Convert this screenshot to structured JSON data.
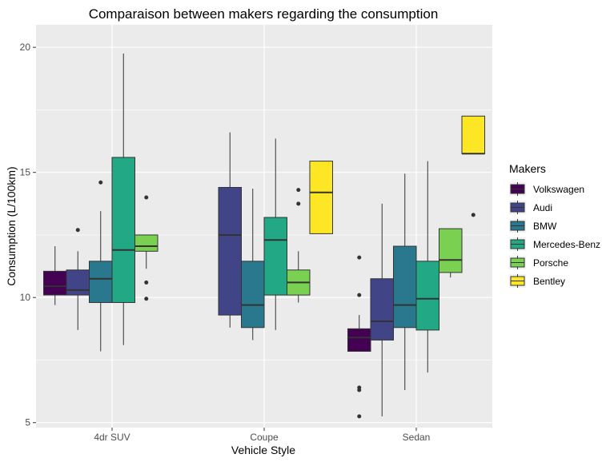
{
  "chart_data": {
    "type": "boxplot",
    "title": "Comparaison between makers regarding the consumption",
    "xlabel": "Vehicle Style",
    "ylabel": "Consumption (L/100km)",
    "ylim": [
      4.8,
      20.9
    ],
    "yticks": [
      5,
      10,
      15,
      20
    ],
    "grid": true,
    "legend_title": "Makers",
    "legend_position": "right",
    "categories": [
      "4dr SUV",
      "Coupe",
      "Sedan"
    ],
    "series": [
      {
        "name": "Volkswagen",
        "color": "#440154",
        "boxes": [
          {
            "category": "4dr SUV",
            "min": 9.7,
            "q1": 10.1,
            "median": 10.45,
            "q3": 11.05,
            "max": 12.05,
            "outliers": []
          },
          null,
          {
            "category": "Sedan",
            "min": 7.85,
            "q1": 7.85,
            "median": 8.4,
            "q3": 8.75,
            "max": 9.3,
            "outliers": [
              11.6,
              10.1,
              6.4,
              6.3,
              5.25
            ]
          }
        ]
      },
      {
        "name": "Audi",
        "color": "#414487",
        "boxes": [
          {
            "category": "4dr SUV",
            "min": 8.7,
            "q1": 10.1,
            "median": 10.3,
            "q3": 11.1,
            "max": 11.85,
            "outliers": [
              12.7
            ]
          },
          {
            "category": "Coupe",
            "min": 8.8,
            "q1": 9.3,
            "median": 12.5,
            "q3": 14.4,
            "max": 16.6,
            "outliers": []
          },
          {
            "category": "Sedan",
            "min": 5.25,
            "q1": 8.3,
            "median": 9.05,
            "q3": 10.75,
            "max": 13.75,
            "outliers": []
          }
        ]
      },
      {
        "name": "BMW",
        "color": "#2a788e",
        "boxes": [
          {
            "category": "4dr SUV",
            "min": 7.85,
            "q1": 9.8,
            "median": 10.75,
            "q3": 11.45,
            "max": 13.45,
            "outliers": [
              14.6
            ]
          },
          {
            "category": "Coupe",
            "min": 8.3,
            "q1": 8.8,
            "median": 9.7,
            "q3": 11.45,
            "max": 14.35,
            "outliers": []
          },
          {
            "category": "Sedan",
            "min": 6.3,
            "q1": 8.8,
            "median": 9.7,
            "q3": 12.05,
            "max": 14.95,
            "outliers": []
          }
        ]
      },
      {
        "name": "Mercedes-Benz",
        "color": "#22a884",
        "boxes": [
          {
            "category": "4dr SUV",
            "min": 8.1,
            "q1": 9.8,
            "median": 11.9,
            "q3": 15.6,
            "max": 19.75,
            "outliers": []
          },
          {
            "category": "Coupe",
            "min": 8.7,
            "q1": 10.1,
            "median": 12.3,
            "q3": 13.2,
            "max": 16.35,
            "outliers": []
          },
          {
            "category": "Sedan",
            "min": 7.0,
            "q1": 8.7,
            "median": 9.95,
            "q3": 11.45,
            "max": 15.45,
            "outliers": []
          }
        ]
      },
      {
        "name": "Porsche",
        "color": "#7ad151",
        "boxes": [
          {
            "category": "4dr SUV",
            "min": 11.15,
            "q1": 11.85,
            "median": 12.05,
            "q3": 12.5,
            "max": 12.5,
            "outliers": [
              14.0,
              10.6,
              9.95
            ]
          },
          {
            "category": "Coupe",
            "min": 9.8,
            "q1": 10.1,
            "median": 10.6,
            "q3": 11.1,
            "max": 11.85,
            "outliers": [
              14.3,
              13.75
            ]
          },
          {
            "category": "Sedan",
            "min": 10.8,
            "q1": 11.0,
            "median": 11.5,
            "q3": 12.75,
            "max": 12.75,
            "outliers": []
          }
        ]
      },
      {
        "name": "Bentley",
        "color": "#fde725",
        "boxes": [
          null,
          {
            "category": "Coupe",
            "min": 12.55,
            "q1": 12.55,
            "median": 14.2,
            "q3": 15.45,
            "max": 15.45,
            "outliers": []
          },
          {
            "category": "Sedan",
            "min": 15.75,
            "q1": 15.75,
            "median": 15.75,
            "q3": 17.25,
            "max": 17.25,
            "outliers": [
              13.3
            ]
          }
        ]
      }
    ]
  }
}
